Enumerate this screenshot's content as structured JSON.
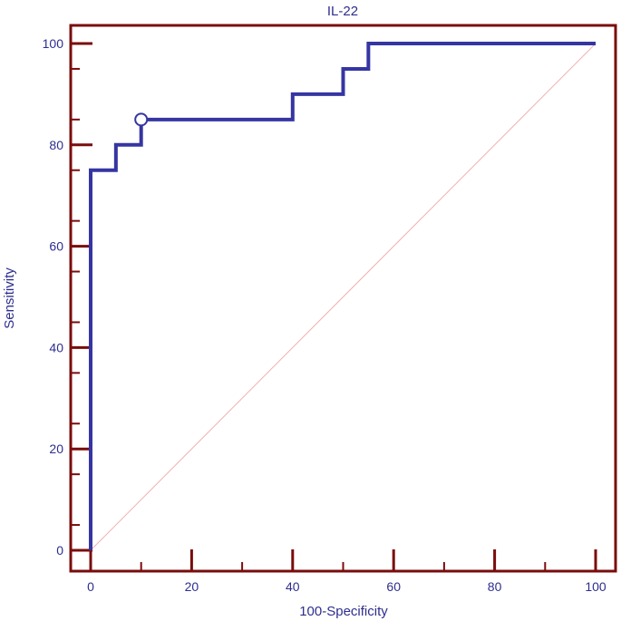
{
  "chart_data": {
    "type": "line",
    "title": "IL-22",
    "xlabel": "100-Specificity",
    "ylabel": "Sensitivity",
    "xlim": [
      0,
      100
    ],
    "ylim": [
      0,
      100
    ],
    "x_ticks": [
      0,
      20,
      40,
      60,
      80,
      100
    ],
    "y_ticks": [
      0,
      20,
      40,
      60,
      80,
      100
    ],
    "x_tick_labels": [
      "0",
      "20",
      "40",
      "60",
      "80",
      "100"
    ],
    "y_tick_labels": [
      "0",
      "20",
      "40",
      "60",
      "80",
      "100"
    ],
    "grid": false,
    "series": [
      {
        "kind": "step",
        "x": [
          0,
          0,
          5,
          5,
          10,
          10,
          40,
          40,
          50,
          50,
          55,
          55,
          100
        ],
        "y": [
          0,
          75,
          75,
          80,
          80,
          85,
          85,
          90,
          90,
          95,
          95,
          100,
          100
        ]
      },
      {
        "kind": "reference-diagonal",
        "x": [
          0,
          100
        ],
        "y": [
          0,
          100
        ]
      }
    ],
    "annotations": [
      {
        "kind": "open-circle-marker",
        "x": 10,
        "y": 85
      }
    ],
    "colors": {
      "curve": "#3535a3",
      "diagonal": "#f0b0b0",
      "axes": "#7a0c0c",
      "text": "#2e2e8f"
    }
  }
}
